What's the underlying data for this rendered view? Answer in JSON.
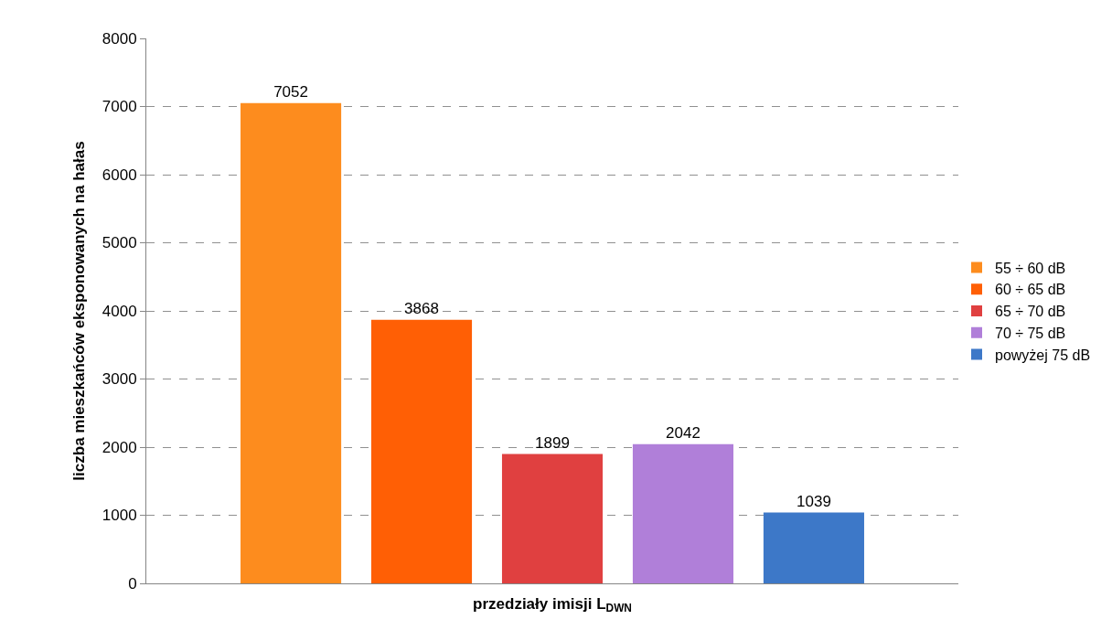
{
  "chart_data": {
    "type": "bar",
    "xlabel": "przedziały imisji L$_{DWN}$",
    "ylabel": "liczba mieszkańców eksponowanych na hałas",
    "categories": [
      null
    ],
    "series": [
      {
        "name": "55 ÷ 60 dB",
        "color": "#fd8c1e",
        "values": [
          7052
        ]
      },
      {
        "name": "60 ÷ 65 dB",
        "color": "#ff5f05",
        "values": [
          3868
        ]
      },
      {
        "name": "65 ÷ 70 dB",
        "color": "#e04040",
        "values": [
          1899
        ]
      },
      {
        "name": "70 ÷ 75 dB",
        "color": "#b07fd9",
        "values": [
          2042
        ]
      },
      {
        "name": "powyżej 75 dB",
        "color": "#3d78c8",
        "values": [
          1039
        ]
      }
    ],
    "ylim": [
      0,
      8000
    ],
    "yticks": [
      0,
      1000,
      2000,
      3000,
      4000,
      5000,
      6000,
      7000,
      8000
    ],
    "grid": "y",
    "legend": "right",
    "data_labels": true
  }
}
